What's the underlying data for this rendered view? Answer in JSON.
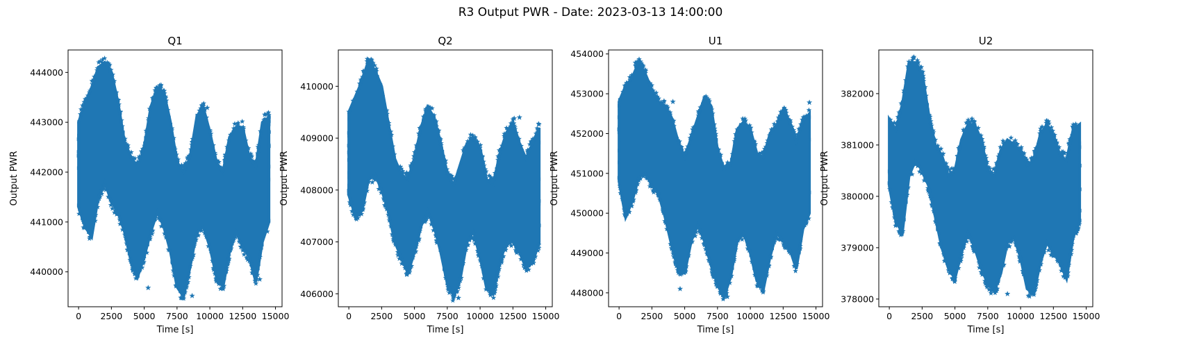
{
  "suptitle": "R3 Output PWR - Date: 2023-03-13 14:00:00",
  "series_color": "#1f77b4",
  "chart_data": [
    {
      "type": "scatter",
      "title": "Q1",
      "xlabel": "Time [s]",
      "ylabel": "Output PWR",
      "marker": "star",
      "xlim": [
        -800,
        15500
      ],
      "ylim": [
        439300,
        444450
      ],
      "xticks": [
        0,
        2500,
        5000,
        7500,
        10000,
        12500,
        15000
      ],
      "yticks": [
        440000,
        441000,
        442000,
        443000,
        444000
      ],
      "envelope": {
        "x": [
          0,
          500,
          1000,
          1500,
          2000,
          2500,
          3000,
          3500,
          4000,
          4500,
          5000,
          5500,
          6000,
          6500,
          7000,
          7500,
          8000,
          8500,
          9000,
          9500,
          10000,
          10500,
          11000,
          11500,
          12000,
          12500,
          13000,
          13500,
          14000,
          14500
        ],
        "upper": [
          443000,
          443400,
          443700,
          444100,
          444200,
          444000,
          443400,
          442600,
          442300,
          442100,
          442500,
          443300,
          443700,
          443600,
          443000,
          442200,
          442000,
          442300,
          443100,
          443300,
          442800,
          442200,
          442000,
          442700,
          442900,
          442900,
          442300,
          442100,
          443000,
          443100
        ],
        "lower": [
          441300,
          440900,
          440700,
          441500,
          441800,
          441400,
          441200,
          440800,
          440200,
          439900,
          440300,
          440800,
          441200,
          440900,
          440400,
          439700,
          439500,
          440100,
          440800,
          440900,
          440500,
          439900,
          439700,
          440400,
          440800,
          440500,
          440300,
          439800,
          440600,
          441000
        ]
      },
      "outliers": [
        [
          1650,
          444220
        ],
        [
          5300,
          439680
        ],
        [
          8650,
          439520
        ],
        [
          9800,
          443290
        ],
        [
          13800,
          439850
        ]
      ]
    },
    {
      "type": "scatter",
      "title": "Q2",
      "xlabel": "Time [s]",
      "ylabel": "Output PWR",
      "marker": "star",
      "xlim": [
        -800,
        15500
      ],
      "ylim": [
        405750,
        410700
      ],
      "xticks": [
        0,
        2500,
        5000,
        7500,
        10000,
        12500,
        15000
      ],
      "yticks": [
        406000,
        407000,
        408000,
        409000,
        410000
      ],
      "envelope": {
        "x": [
          0,
          500,
          1000,
          1500,
          2000,
          2500,
          3000,
          3500,
          4000,
          4500,
          5000,
          5500,
          6000,
          6500,
          7000,
          7500,
          8000,
          8500,
          9000,
          9500,
          10000,
          10500,
          11000,
          11500,
          12000,
          12500,
          13000,
          13500,
          14000,
          14500
        ],
        "upper": [
          409500,
          409800,
          410100,
          410500,
          410300,
          410000,
          409300,
          408600,
          408300,
          408200,
          408600,
          409200,
          409600,
          409400,
          408900,
          408300,
          408100,
          408500,
          408900,
          409000,
          408800,
          408200,
          408100,
          408700,
          409100,
          409300,
          408900,
          408600,
          408900,
          409200
        ],
        "lower": [
          407900,
          407500,
          407600,
          408200,
          408300,
          408000,
          407600,
          407000,
          406700,
          406400,
          406800,
          407300,
          407600,
          407300,
          406800,
          406200,
          405950,
          406300,
          407000,
          407200,
          406700,
          406100,
          406000,
          406600,
          407000,
          407000,
          406800,
          406500,
          406600,
          407000
        ]
      },
      "outliers": [
        [
          1400,
          410480
        ],
        [
          8350,
          405920
        ],
        [
          12600,
          409380
        ],
        [
          13000,
          409400
        ]
      ]
    },
    {
      "type": "scatter",
      "title": "U1",
      "xlabel": "Time [s]",
      "ylabel": "Output PWR",
      "marker": "star",
      "xlim": [
        -800,
        15500
      ],
      "ylim": [
        447650,
        454100
      ],
      "xticks": [
        0,
        2500,
        5000,
        7500,
        10000,
        12500,
        15000
      ],
      "yticks": [
        448000,
        449000,
        450000,
        451000,
        452000,
        453000,
        454000
      ],
      "envelope": {
        "x": [
          0,
          500,
          1000,
          1500,
          2000,
          2500,
          3000,
          3500,
          4000,
          4500,
          5000,
          5500,
          6000,
          6500,
          7000,
          7500,
          8000,
          8500,
          9000,
          9500,
          10000,
          10500,
          11000,
          11500,
          12000,
          12500,
          13000,
          13500,
          14000,
          14500
        ],
        "upper": [
          452800,
          453200,
          453400,
          453800,
          453500,
          453100,
          452800,
          452700,
          452400,
          451800,
          451400,
          451900,
          452400,
          452900,
          452700,
          451600,
          451100,
          451200,
          452100,
          452300,
          452100,
          451500,
          451400,
          452000,
          452200,
          452600,
          452300,
          451800,
          452300,
          452500
        ],
        "lower": [
          450800,
          449900,
          450300,
          450900,
          451000,
          450700,
          450500,
          449900,
          449200,
          448600,
          448500,
          449300,
          449700,
          449300,
          448700,
          448200,
          447900,
          448400,
          449300,
          449500,
          449000,
          448300,
          448100,
          448900,
          449500,
          449300,
          449100,
          448600,
          449600,
          450000
        ]
      },
      "outliers": [
        [
          1250,
          453780
        ],
        [
          4100,
          452800
        ],
        [
          4650,
          448100
        ],
        [
          6550,
          452880
        ],
        [
          8250,
          447900
        ],
        [
          14500,
          452780
        ]
      ]
    },
    {
      "type": "scatter",
      "title": "U2",
      "xlabel": "Time [s]",
      "ylabel": "Output PWR",
      "marker": "star",
      "xlim": [
        -800,
        15500
      ],
      "ylim": [
        377850,
        382850
      ],
      "xticks": [
        0,
        2500,
        5000,
        7500,
        10000,
        12500,
        15000
      ],
      "yticks": [
        378000,
        379000,
        380000,
        381000,
        382000
      ],
      "envelope": {
        "x": [
          0,
          500,
          1000,
          1500,
          2000,
          2500,
          3000,
          3500,
          4000,
          4500,
          5000,
          5500,
          6000,
          6500,
          7000,
          7500,
          8000,
          8500,
          9000,
          9500,
          10000,
          10500,
          11000,
          11500,
          12000,
          12500,
          13000,
          13500,
          14000,
          14500
        ],
        "upper": [
          381500,
          381300,
          381800,
          382600,
          382600,
          382400,
          381600,
          381000,
          380800,
          380400,
          380500,
          381100,
          381400,
          381400,
          381100,
          380500,
          380400,
          380900,
          381100,
          381000,
          380900,
          380600,
          380700,
          381200,
          381400,
          381200,
          380800,
          380700,
          381300,
          381400
        ],
        "lower": [
          380200,
          379500,
          379300,
          380400,
          380700,
          380500,
          380200,
          379600,
          379000,
          378600,
          378400,
          378900,
          379300,
          379000,
          378600,
          378300,
          378150,
          378500,
          379100,
          379200,
          378800,
          378200,
          378100,
          378700,
          379100,
          378900,
          378700,
          378400,
          379200,
          379500
        ]
      },
      "outliers": [
        [
          1500,
          382620
        ],
        [
          9000,
          378100
        ],
        [
          10800,
          378100
        ]
      ]
    }
  ]
}
